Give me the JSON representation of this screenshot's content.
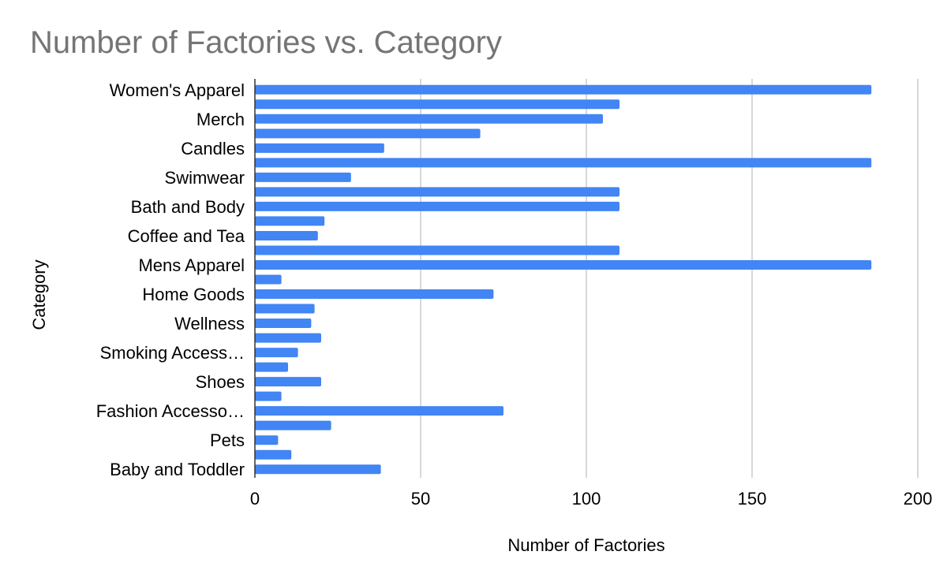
{
  "chart_data": {
    "type": "bar",
    "orientation": "horizontal",
    "title": "Number of Factories vs. Category",
    "xlabel": "Number of Factories",
    "ylabel": "Category",
    "xlim": [
      0,
      200
    ],
    "xticks": [
      0,
      50,
      100,
      150,
      200
    ],
    "grid": true,
    "bar_color": "#4285f4",
    "categories": [
      "Women's Apparel",
      "",
      "Merch",
      "",
      "Candles",
      "",
      "Swimwear",
      "",
      "Bath and Body",
      "",
      "Coffee and Tea",
      "",
      "Mens Apparel",
      "",
      "Home Goods",
      "",
      "Wellness",
      "",
      "Smoking Access…",
      "",
      "Shoes",
      "",
      "Fashion Accesso…",
      "",
      "Pets",
      "",
      "Baby and Toddler"
    ],
    "values": [
      186,
      110,
      105,
      68,
      39,
      186,
      29,
      110,
      110,
      21,
      19,
      110,
      186,
      8,
      72,
      18,
      17,
      20,
      13,
      10,
      20,
      8,
      75,
      23,
      7,
      11,
      38
    ]
  }
}
